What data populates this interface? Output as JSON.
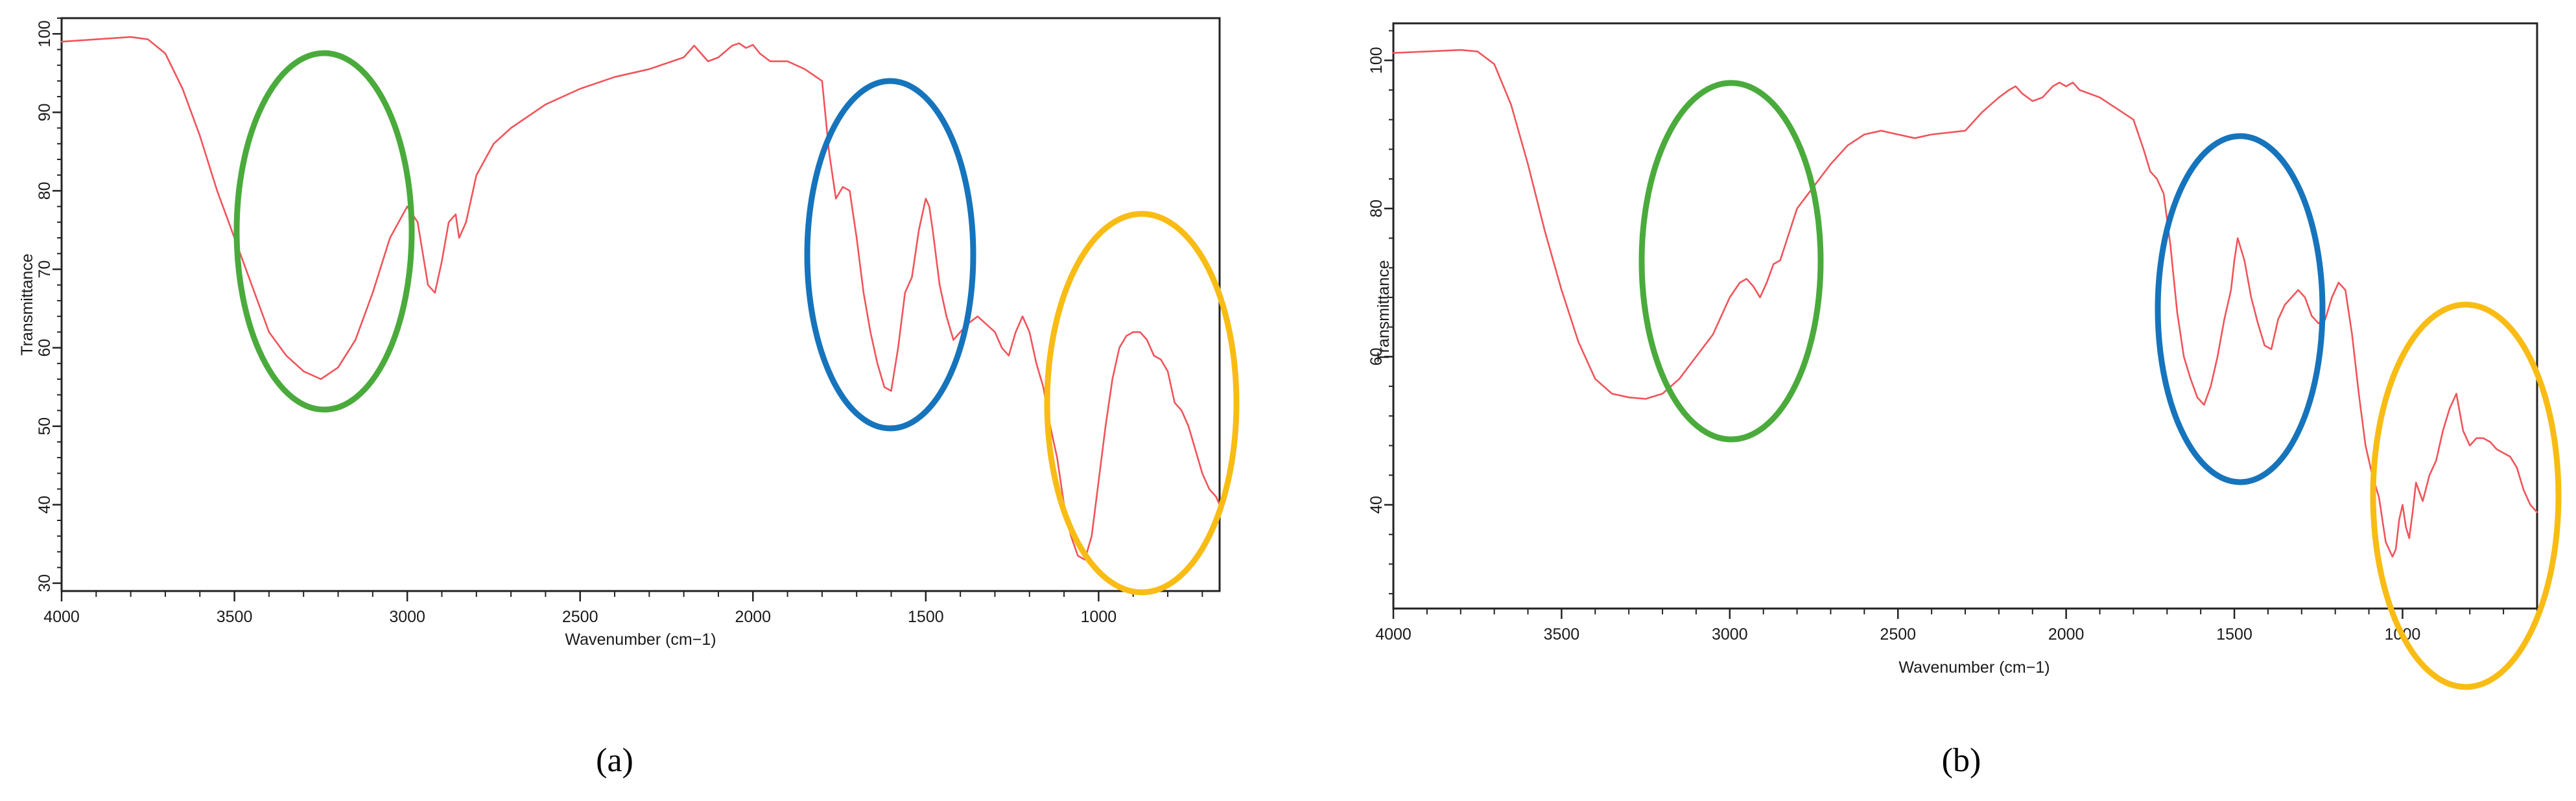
{
  "chart_data": [
    {
      "type": "line",
      "panel_label": "(a)",
      "xlabel": "Wavenumber (cm−1)",
      "ylabel": "Transmittance",
      "xlim": [
        4000,
        650
      ],
      "ylim": [
        29,
        102
      ],
      "x_reversed": true,
      "x_ticks": [
        4000,
        3500,
        3000,
        2500,
        2000,
        1500,
        1000
      ],
      "y_ticks": [
        30,
        40,
        50,
        60,
        70,
        80,
        90,
        100
      ],
      "line_color": "#f0545a",
      "grid": false,
      "legend": "none",
      "series": [
        {
          "x": [
            4000,
            3900,
            3800,
            3750,
            3700,
            3650,
            3600,
            3550,
            3500,
            3450,
            3400,
            3350,
            3300,
            3250,
            3200,
            3150,
            3100,
            3050,
            3000,
            2970,
            2940,
            2920,
            2900,
            2880,
            2860,
            2850,
            2830,
            2800,
            2750,
            2700,
            2600,
            2500,
            2400,
            2300,
            2200,
            2170,
            2150,
            2130,
            2100,
            2060,
            2040,
            2020,
            2000,
            1980,
            1950,
            1900,
            1850,
            1800,
            1780,
            1760,
            1740,
            1720,
            1700,
            1680,
            1660,
            1640,
            1620,
            1600,
            1580,
            1560,
            1540,
            1520,
            1500,
            1490,
            1480,
            1460,
            1440,
            1420,
            1400,
            1380,
            1350,
            1300,
            1280,
            1260,
            1240,
            1220,
            1200,
            1180,
            1160,
            1140,
            1120,
            1100,
            1080,
            1060,
            1040,
            1020,
            1000,
            980,
            960,
            940,
            920,
            900,
            880,
            860,
            840,
            820,
            800,
            780,
            760,
            740,
            720,
            700,
            680,
            660,
            650
          ],
          "y": [
            99,
            99.3,
            99.6,
            99.3,
            97.5,
            93,
            87,
            80,
            74,
            68,
            62,
            59,
            57,
            56,
            57.5,
            61,
            67,
            74,
            78,
            76,
            68,
            67,
            71,
            76,
            77,
            74,
            76,
            82,
            86,
            88,
            91,
            93,
            94.5,
            95.5,
            97,
            98.5,
            97.5,
            96.5,
            97,
            98.5,
            98.8,
            98.2,
            98.6,
            97.5,
            96.5,
            96.5,
            95.5,
            94,
            85,
            79,
            80.5,
            80,
            74,
            67,
            62,
            58,
            55,
            54.5,
            60,
            67,
            69,
            75,
            79,
            78,
            75,
            68,
            64,
            61,
            62,
            63,
            64,
            62,
            60,
            59,
            62,
            64,
            62,
            58,
            55,
            50,
            46,
            40,
            36,
            33.5,
            33,
            36,
            43,
            50,
            56,
            60,
            61.5,
            62,
            62,
            61,
            59,
            58.5,
            57,
            53,
            52,
            50,
            47,
            44,
            42,
            41,
            40
          ]
        }
      ]
    },
    {
      "type": "line",
      "panel_label": "(b)",
      "xlabel": "Wavenumber (cm−1)",
      "ylabel": "Transmittance",
      "xlim": [
        4000,
        600
      ],
      "ylim": [
        26,
        105
      ],
      "x_reversed": true,
      "x_ticks": [
        4000,
        3500,
        3000,
        2500,
        2000,
        1500,
        1000
      ],
      "y_ticks": [
        40,
        60,
        80,
        100
      ],
      "line_color": "#f0545a",
      "grid": false,
      "legend": "none",
      "series": [
        {
          "x": [
            4000,
            3900,
            3800,
            3750,
            3700,
            3650,
            3600,
            3550,
            3500,
            3450,
            3400,
            3350,
            3300,
            3250,
            3200,
            3150,
            3100,
            3050,
            3000,
            2970,
            2950,
            2930,
            2910,
            2890,
            2870,
            2850,
            2800,
            2750,
            2700,
            2650,
            2600,
            2550,
            2500,
            2450,
            2400,
            2300,
            2250,
            2200,
            2170,
            2150,
            2130,
            2100,
            2070,
            2040,
            2020,
            2000,
            1980,
            1960,
            1900,
            1850,
            1800,
            1770,
            1750,
            1730,
            1710,
            1690,
            1670,
            1650,
            1630,
            1610,
            1590,
            1570,
            1550,
            1530,
            1510,
            1500,
            1490,
            1470,
            1450,
            1430,
            1410,
            1390,
            1370,
            1350,
            1330,
            1310,
            1290,
            1270,
            1250,
            1230,
            1210,
            1190,
            1170,
            1150,
            1130,
            1110,
            1090,
            1070,
            1060,
            1050,
            1040,
            1030,
            1020,
            1010,
            1000,
            990,
            980,
            970,
            960,
            940,
            920,
            900,
            880,
            860,
            840,
            820,
            800,
            780,
            760,
            740,
            720,
            700,
            680,
            660,
            640,
            620,
            600
          ],
          "y": [
            101,
            101.2,
            101.4,
            101.2,
            99.5,
            94,
            86,
            77,
            69,
            62,
            57,
            55,
            54.5,
            54.3,
            55,
            57,
            60,
            63,
            68,
            70,
            70.5,
            69.5,
            68,
            70,
            72.5,
            73,
            80,
            83,
            86,
            88.5,
            90,
            90.5,
            90,
            89.5,
            90,
            90.5,
            93,
            95,
            96,
            96.5,
            95.5,
            94.5,
            95,
            96.5,
            97,
            96.5,
            97,
            96,
            95,
            93.5,
            92,
            88,
            85,
            84,
            82,
            75,
            66,
            60,
            57,
            54.5,
            53.5,
            56,
            60,
            65,
            69,
            73,
            76,
            73,
            68,
            64.5,
            61.5,
            61,
            65,
            67,
            68,
            69,
            68,
            65.5,
            64.5,
            65,
            68,
            70,
            69,
            63,
            55,
            48,
            44,
            41,
            38,
            35,
            34,
            33,
            34,
            38,
            40,
            37,
            35.5,
            39,
            43,
            40.5,
            44,
            46,
            50,
            53,
            55,
            50,
            48,
            49,
            49,
            48.5,
            47.5,
            47,
            46.5,
            45,
            42,
            40,
            39
          ]
        }
      ]
    }
  ],
  "annotation_colors": {
    "green": "#4aab3c",
    "blue": "#1674bc",
    "yellow": "#f8bc14"
  }
}
